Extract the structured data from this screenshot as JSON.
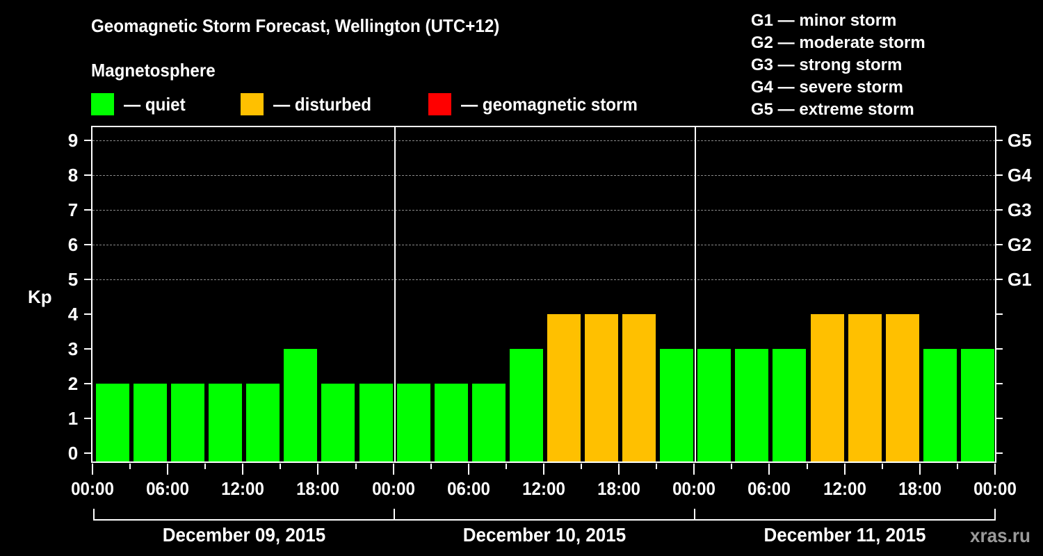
{
  "title": "Geomagnetic Storm Forecast, Wellington (UTC+12)",
  "subtitle": "Magnetosphere",
  "legend": [
    {
      "label": "— quiet",
      "color": "#00ff00"
    },
    {
      "label": "— disturbed",
      "color": "#ffc000"
    },
    {
      "label": "— geomagnetic storm",
      "color": "#ff0000"
    }
  ],
  "storm_scale": [
    "G1 — minor storm",
    "G2 — moderate storm",
    "G3 — strong storm",
    "G4 — severe storm",
    "G5 — extreme storm"
  ],
  "y_axis": {
    "label": "Kp",
    "ticks": [
      "0",
      "1",
      "2",
      "3",
      "4",
      "5",
      "6",
      "7",
      "8",
      "9"
    ]
  },
  "right_axis": {
    "ticks": [
      "G1",
      "G2",
      "G3",
      "G4",
      "G5"
    ]
  },
  "x_axis": {
    "ticks": [
      "00:00",
      "06:00",
      "12:00",
      "18:00",
      "00:00",
      "06:00",
      "12:00",
      "18:00",
      "00:00",
      "06:00",
      "12:00",
      "18:00",
      "00:00"
    ]
  },
  "days": [
    "December 09, 2015",
    "December 10, 2015",
    "December 11, 2015"
  ],
  "watermark": "xras.ru",
  "chart_data": {
    "type": "bar",
    "title": "Geomagnetic Storm Forecast, Wellington (UTC+12)",
    "xlabel": "",
    "ylabel": "Kp",
    "ylim": [
      0,
      9
    ],
    "grid": "dashed horizontal lines at Kp 5–9",
    "categories": [
      "Dec 09 00:00",
      "Dec 09 03:00",
      "Dec 09 06:00",
      "Dec 09 09:00",
      "Dec 09 12:00",
      "Dec 09 15:00",
      "Dec 09 18:00",
      "Dec 09 21:00",
      "Dec 10 00:00",
      "Dec 10 03:00",
      "Dec 10 06:00",
      "Dec 10 09:00",
      "Dec 10 12:00",
      "Dec 10 15:00",
      "Dec 10 18:00",
      "Dec 10 21:00",
      "Dec 11 00:00",
      "Dec 11 03:00",
      "Dec 11 06:00",
      "Dec 11 09:00",
      "Dec 11 12:00",
      "Dec 11 15:00",
      "Dec 11 18:00",
      "Dec 11 21:00"
    ],
    "values": [
      2,
      2,
      2,
      2,
      2,
      3,
      2,
      2,
      2,
      2,
      2,
      3,
      4,
      4,
      4,
      3,
      3,
      3,
      3,
      4,
      4,
      4,
      3,
      3
    ],
    "status": [
      "quiet",
      "quiet",
      "quiet",
      "quiet",
      "quiet",
      "quiet",
      "quiet",
      "quiet",
      "quiet",
      "quiet",
      "quiet",
      "quiet",
      "disturbed",
      "disturbed",
      "disturbed",
      "quiet",
      "quiet",
      "quiet",
      "quiet",
      "disturbed",
      "disturbed",
      "disturbed",
      "quiet",
      "quiet"
    ],
    "colors": {
      "quiet": "#00ff00",
      "disturbed": "#ffc000",
      "storm": "#ff0000"
    },
    "right_axis_labels": {
      "5": "G1",
      "6": "G2",
      "7": "G3",
      "8": "G4",
      "9": "G5"
    },
    "legend": [
      "quiet",
      "disturbed",
      "geomagnetic storm"
    ]
  }
}
